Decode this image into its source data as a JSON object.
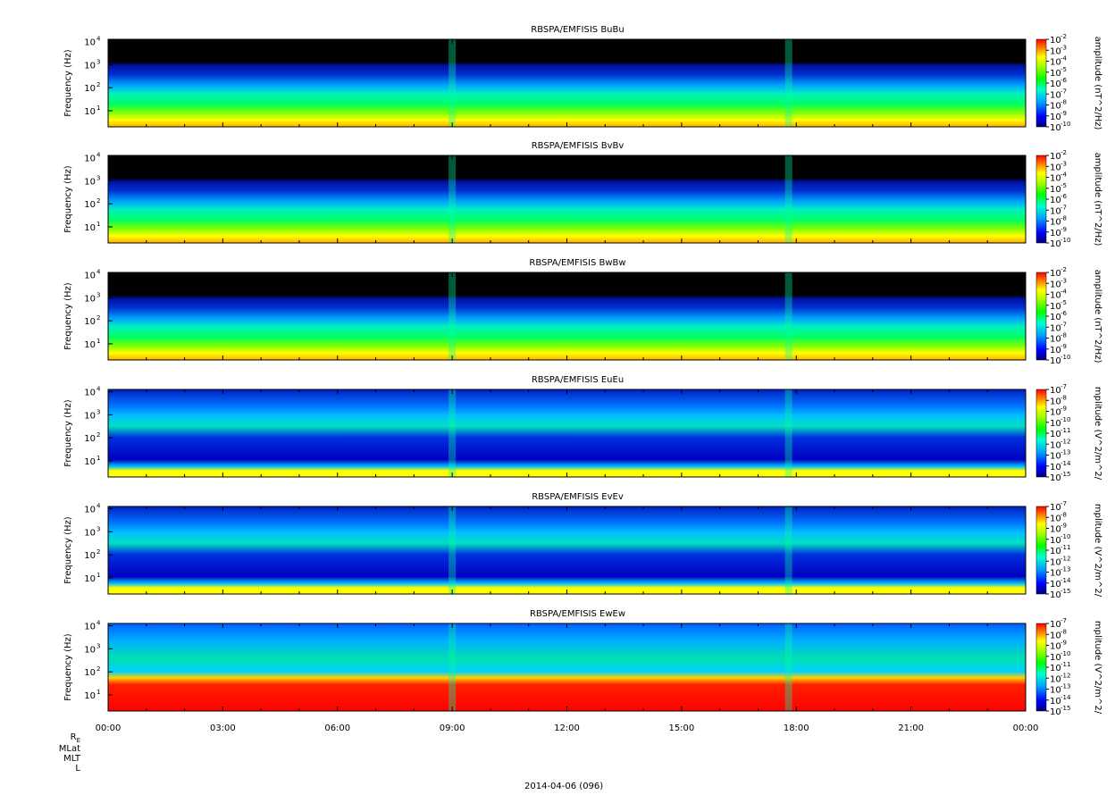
{
  "figure": {
    "date_label": "2014-04-06 (096)",
    "x_axis": {
      "tick_labels": [
        "00:00",
        "03:00",
        "06:00",
        "09:00",
        "12:00",
        "15:00",
        "18:00",
        "21:00",
        "00:00"
      ],
      "range_hours": [
        0,
        24
      ]
    },
    "ephemeris_labels": [
      "R",
      "MLat",
      "MLT",
      "L"
    ],
    "ephemeris_subscript": "E",
    "ylabel": "Frequency (Hz)",
    "y_tick_labels": [
      "10",
      "10",
      "10",
      "10"
    ],
    "y_tick_exponents": [
      "1",
      "2",
      "3",
      "4"
    ]
  },
  "chart_data": [
    {
      "type": "heatmap",
      "title": "RBSPA/EMFISIS  BuBu",
      "ylabel": "Frequency (Hz)",
      "ylim_log10": [
        0.3,
        4.1
      ],
      "colorbar": {
        "label": "amplitude (nT^2/Hz)",
        "tick_labels": [
          "10",
          "10",
          "10",
          "10",
          "10",
          "10",
          "10",
          "10",
          "10"
        ],
        "tick_exponents": [
          "-2",
          "-3",
          "-4",
          "-5",
          "-6",
          "-7",
          "-8",
          "-9",
          "-10"
        ]
      }
    },
    {
      "type": "heatmap",
      "title": "RBSPA/EMFISIS  BvBv",
      "ylabel": "Frequency (Hz)",
      "ylim_log10": [
        0.3,
        4.1
      ],
      "colorbar": {
        "label": "amplitude (nT^2/Hz)",
        "tick_labels": [
          "10",
          "10",
          "10",
          "10",
          "10",
          "10",
          "10",
          "10",
          "10"
        ],
        "tick_exponents": [
          "-2",
          "-3",
          "-4",
          "-5",
          "-6",
          "-7",
          "-8",
          "-9",
          "-10"
        ]
      }
    },
    {
      "type": "heatmap",
      "title": "RBSPA/EMFISIS  BwBw",
      "ylabel": "Frequency (Hz)",
      "ylim_log10": [
        0.3,
        4.1
      ],
      "colorbar": {
        "label": "amplitude (nT^2/Hz)",
        "tick_labels": [
          "10",
          "10",
          "10",
          "10",
          "10",
          "10",
          "10",
          "10",
          "10"
        ],
        "tick_exponents": [
          "-2",
          "-3",
          "-4",
          "-5",
          "-6",
          "-7",
          "-8",
          "-9",
          "-10"
        ]
      }
    },
    {
      "type": "heatmap",
      "title": "RBSPA/EMFISIS  EuEu",
      "ylabel": "Frequency (Hz)",
      "ylim_log10": [
        0.3,
        4.1
      ],
      "colorbar": {
        "label": "mplitude (V^2/m^2/",
        "tick_labels": [
          "10",
          "10",
          "10",
          "10",
          "10",
          "10",
          "10",
          "10",
          "10"
        ],
        "tick_exponents": [
          "-7",
          "-8",
          "-9",
          "-10",
          "-11",
          "-12",
          "-13",
          "-14",
          "-15"
        ]
      }
    },
    {
      "type": "heatmap",
      "title": "RBSPA/EMFISIS  EvEv",
      "ylabel": "Frequency (Hz)",
      "ylim_log10": [
        0.3,
        4.1
      ],
      "colorbar": {
        "label": "mplitude (V^2/m^2/",
        "tick_labels": [
          "10",
          "10",
          "10",
          "10",
          "10",
          "10",
          "10",
          "10",
          "10"
        ],
        "tick_exponents": [
          "-7",
          "-8",
          "-9",
          "-10",
          "-11",
          "-12",
          "-13",
          "-14",
          "-15"
        ]
      }
    },
    {
      "type": "heatmap",
      "title": "RBSPA/EMFISIS  EwEw",
      "ylabel": "Frequency (Hz)",
      "ylim_log10": [
        0.3,
        4.1
      ],
      "colorbar": {
        "label": "mplitude (V^2/m^2/",
        "tick_labels": [
          "10",
          "10",
          "10",
          "10",
          "10",
          "10",
          "10",
          "10",
          "10"
        ],
        "tick_exponents": [
          "-7",
          "-8",
          "-9",
          "-10",
          "-11",
          "-12",
          "-13",
          "-14",
          "-15"
        ]
      }
    }
  ]
}
